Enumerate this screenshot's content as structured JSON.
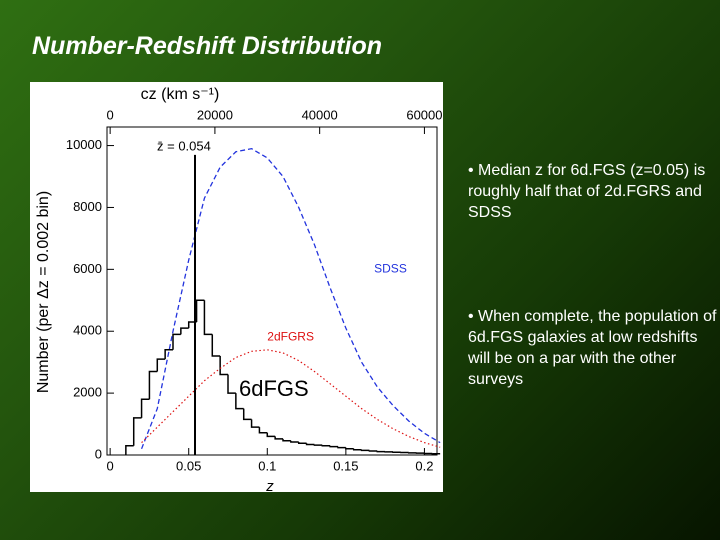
{
  "slide": {
    "title": "Number-Redshift Distribution",
    "bullets": [
      "Median z for 6d.FGS (z=0.05) is roughly half that of 2d.FGRS and SDSS",
      "When complete, the population of 6d.FGS galaxies at low redshifts will be on a par with the other surveys"
    ]
  },
  "chart_data": {
    "type": "line",
    "x_label": "z",
    "x2_label": "cz  (km s⁻¹)",
    "y_label": "Number  (per  Δz = 0.002 bin)",
    "xlim": [
      -0.002,
      0.208
    ],
    "xticks": [
      0,
      0.05,
      0.1,
      0.15,
      0.2
    ],
    "x2lim": [
      -600,
      62400
    ],
    "x2ticks": [
      0,
      20000,
      40000,
      60000
    ],
    "ylim": [
      0,
      10600
    ],
    "yticks": [
      0,
      2000,
      4000,
      6000,
      8000,
      10000
    ],
    "annotations": [
      {
        "text": "z̄ = 0.054",
        "x": 0.054,
        "y": 9700
      }
    ],
    "series": [
      {
        "name": "6dFGS",
        "color": "#000000",
        "style": "step",
        "bins": [
          0.01,
          0.015,
          0.02,
          0.025,
          0.03,
          0.035,
          0.04,
          0.045,
          0.05,
          0.055,
          0.06,
          0.065,
          0.07,
          0.075,
          0.08,
          0.085,
          0.09,
          0.095,
          0.1,
          0.105,
          0.11,
          0.115,
          0.12,
          0.125,
          0.13,
          0.135,
          0.14,
          0.145,
          0.15,
          0.155,
          0.16,
          0.165,
          0.17,
          0.175,
          0.18,
          0.185,
          0.19,
          0.195,
          0.2,
          0.205,
          0.21
        ],
        "values": [
          300,
          1200,
          1800,
          2700,
          3100,
          3400,
          3900,
          4100,
          4300,
          5000,
          3900,
          3200,
          2600,
          2000,
          1500,
          1150,
          900,
          720,
          600,
          520,
          460,
          420,
          380,
          340,
          320,
          300,
          270,
          240,
          200,
          170,
          150,
          130,
          110,
          100,
          90,
          80,
          70,
          60,
          50,
          40
        ]
      },
      {
        "name": "SDSS",
        "color": "#2233dd",
        "style": "dashed",
        "x": [
          0.02,
          0.03,
          0.04,
          0.05,
          0.06,
          0.07,
          0.08,
          0.09,
          0.1,
          0.11,
          0.12,
          0.13,
          0.14,
          0.15,
          0.16,
          0.17,
          0.18,
          0.19,
          0.2,
          0.21
        ],
        "values": [
          200,
          1500,
          4000,
          6300,
          8300,
          9300,
          9800,
          9900,
          9600,
          9000,
          8000,
          6800,
          5400,
          4100,
          3000,
          2200,
          1600,
          1100,
          700,
          400
        ]
      },
      {
        "name": "2dFGRS",
        "color": "#dd1111",
        "style": "dotted",
        "x": [
          0.02,
          0.03,
          0.04,
          0.05,
          0.06,
          0.07,
          0.08,
          0.09,
          0.1,
          0.11,
          0.12,
          0.13,
          0.14,
          0.15,
          0.16,
          0.17,
          0.18,
          0.19,
          0.2,
          0.21
        ],
        "values": [
          400,
          900,
          1400,
          1900,
          2400,
          2800,
          3150,
          3350,
          3400,
          3300,
          3050,
          2700,
          2300,
          1900,
          1500,
          1150,
          850,
          600,
          400,
          250
        ]
      }
    ]
  }
}
